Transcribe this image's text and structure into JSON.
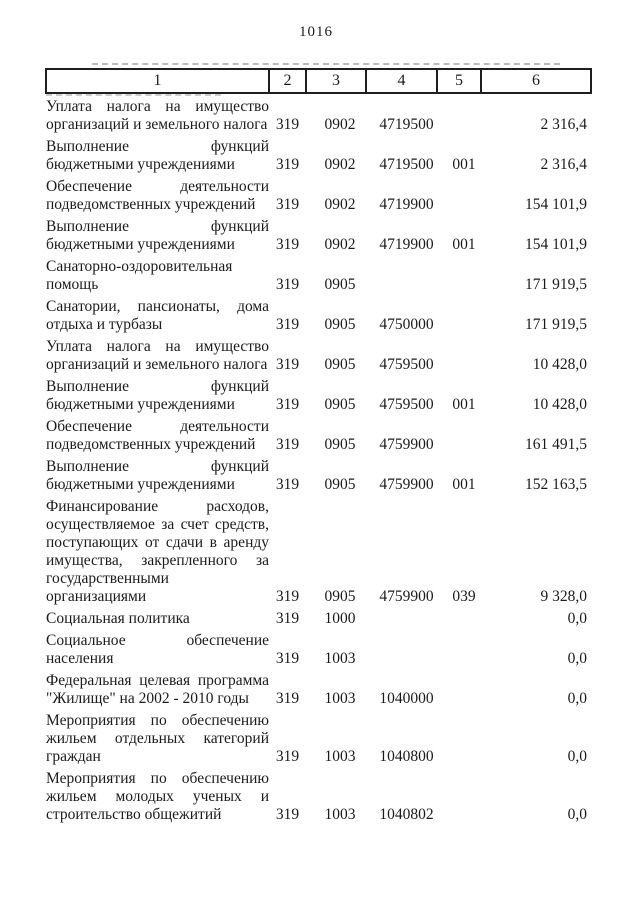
{
  "page": {
    "number": "1016"
  },
  "colors": {
    "text": "#1b1b1b",
    "border": "#1f1f1f",
    "page_bg": "#ffffff"
  },
  "table": {
    "columns": [
      "1",
      "2",
      "3",
      "4",
      "5",
      "6"
    ],
    "rows": [
      {
        "name": "Уплата налога на имущество\nорганизаций и земельного налога",
        "c2": "319",
        "c3": "0902",
        "c4": "4719500",
        "c5": "",
        "c6": "2 316,4"
      },
      {
        "name": "Выполнение функций\nбюджетными учреждениями",
        "c2": "319",
        "c3": "0902",
        "c4": "4719500",
        "c5": "001",
        "c6": "2 316,4"
      },
      {
        "name": "Обеспечение деятельности\nподведомственных учреждений",
        "c2": "319",
        "c3": "0902",
        "c4": "4719900",
        "c5": "",
        "c6": "154 101,9"
      },
      {
        "name": "Выполнение функций\nбюджетными учреждениями",
        "c2": "319",
        "c3": "0902",
        "c4": "4719900",
        "c5": "001",
        "c6": "154 101,9"
      },
      {
        "name": "Санаторно-оздоровительная\nпомощь",
        "c2": "319",
        "c3": "0905",
        "c4": "",
        "c5": "",
        "c6": "171 919,5"
      },
      {
        "name": "Санатории, пансионаты, дома\nотдыха и турбазы",
        "c2": "319",
        "c3": "0905",
        "c4": "4750000",
        "c5": "",
        "c6": "171 919,5"
      },
      {
        "name": "Уплата налога на имущество\nорганизаций и земельного налога",
        "c2": "319",
        "c3": "0905",
        "c4": "4759500",
        "c5": "",
        "c6": "10 428,0"
      },
      {
        "name": "Выполнение функций\nбюджетными учреждениями",
        "c2": "319",
        "c3": "0905",
        "c4": "4759500",
        "c5": "001",
        "c6": "10 428,0"
      },
      {
        "name": "Обеспечение деятельности\nподведомственных учреждений",
        "c2": "319",
        "c3": "0905",
        "c4": "4759900",
        "c5": "",
        "c6": "161 491,5"
      },
      {
        "name": "Выполнение функций\nбюджетными учреждениями",
        "c2": "319",
        "c3": "0905",
        "c4": "4759900",
        "c5": "001",
        "c6": "152 163,5"
      },
      {
        "name": "Финансирование расходов,\nосуществляемое за счет средств,\nпоступающих от сдачи в аренду\nимущества, закрепленного за\nгосударственными\nорганизациями",
        "c2": "319",
        "c3": "0905",
        "c4": "4759900",
        "c5": "039",
        "c6": "9 328,0"
      },
      {
        "name": "Социальная политика",
        "c2": "319",
        "c3": "1000",
        "c4": "",
        "c5": "",
        "c6": "0,0"
      },
      {
        "name": "Социальное обеспечение\nнаселения",
        "c2": "319",
        "c3": "1003",
        "c4": "",
        "c5": "",
        "c6": "0,0"
      },
      {
        "name": "Федеральная целевая программа\n\"Жилище\" на 2002 - 2010 годы",
        "c2": "319",
        "c3": "1003",
        "c4": "1040000",
        "c5": "",
        "c6": "0,0"
      },
      {
        "name": "Мероприятия по обеспечению\nжильем отдельных категорий\nграждан",
        "c2": "319",
        "c3": "1003",
        "c4": "1040800",
        "c5": "",
        "c6": "0,0"
      },
      {
        "name": "Мероприятия по обеспечению\nжильем молодых ученых и\nстроительство общежитий",
        "c2": "319",
        "c3": "1003",
        "c4": "1040802",
        "c5": "",
        "c6": "0,0"
      }
    ]
  }
}
